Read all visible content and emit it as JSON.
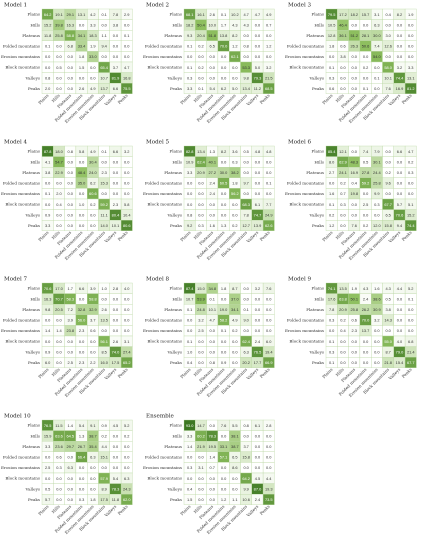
{
  "figure": {
    "class_labels": [
      "Plains",
      "Hills",
      "Plateaus",
      "Folded mountains",
      "Erosion mountains",
      "Block mountains",
      "Valleys",
      "Peaks"
    ]
  },
  "colors": {
    "low": "#ffffff",
    "mid": "#8fc060",
    "high": "#2f6b18",
    "border": "#b8d6a0"
  },
  "chart_data": [
    {
      "type": "heatmap",
      "title": "Model 1",
      "rows": [
        "Plains",
        "Hills",
        "Plateaus",
        "Folded mountains",
        "Erosion mountains",
        "Block mountains",
        "Valleys",
        "Peaks"
      ],
      "columns": [
        "Plains",
        "Hills",
        "Plateaus",
        "Folded mountains",
        "Erosion mountains",
        "Block mountains",
        "Valleys",
        "Peaks"
      ],
      "values": [
        [
          64.2,
          19.1,
          29.1,
          13.1,
          4.2,
          0.1,
          7.8,
          2.9
        ],
        [
          15.2,
          39.8,
          16.3,
          0.0,
          3.3,
          0.0,
          3.8,
          0.0
        ],
        [
          11.8,
          25.8,
          58.8,
          34.1,
          18.3,
          1.1,
          0.0,
          0.1
        ],
        [
          0.1,
          0.0,
          6.8,
          33.4,
          1.9,
          9.4,
          0.0,
          0.0
        ],
        [
          0.0,
          0.0,
          0.0,
          1.8,
          33.0,
          0.0,
          0.0,
          0.0
        ],
        [
          0.0,
          0.5,
          0.0,
          1.5,
          0.0,
          65.4,
          3.7,
          4.7
        ],
        [
          0.8,
          0.0,
          0.0,
          0.0,
          0.0,
          10.7,
          81.9,
          16.8
        ],
        [
          2.0,
          0.0,
          0.0,
          2.6,
          4.9,
          13.7,
          6.6,
          75.5
        ]
      ]
    },
    {
      "type": "heatmap",
      "title": "Model 2",
      "rows": [
        "Plains",
        "Hills",
        "Plateaus",
        "Folded mountains",
        "Erosion mountains",
        "Block mountains",
        "Valleys",
        "Peaks"
      ],
      "columns": [
        "Plains",
        "Hills",
        "Plateaus",
        "Folded mountains",
        "Erosion mountains",
        "Block mountains",
        "Valleys",
        "Peaks"
      ],
      "values": [
        [
          68.1,
          16.1,
          2.6,
          0.1,
          10.2,
          4.7,
          4.7,
          4.9
        ],
        [
          18.2,
          50.4,
          10.0,
          1.7,
          4.3,
          4.3,
          0.0,
          0.7
        ],
        [
          9.3,
          20.4,
          51.8,
          13.8,
          8.2,
          0.0,
          0.0,
          0.0
        ],
        [
          0.1,
          0.2,
          6.5,
          70.0,
          1.2,
          0.8,
          0.0,
          1.2
        ],
        [
          0.0,
          0.0,
          0.0,
          0.0,
          62.1,
          0.0,
          0.0,
          0.0
        ],
        [
          0.1,
          0.2,
          0.0,
          0.0,
          0.0,
          53.3,
          5.0,
          3.2
        ],
        [
          0.3,
          0.0,
          0.0,
          0.0,
          0.0,
          9.8,
          79.3,
          21.5
        ],
        [
          3.3,
          0.1,
          5.4,
          6.2,
          5.0,
          13.4,
          11.2,
          68.5
        ]
      ]
    },
    {
      "type": "heatmap",
      "title": "Model 3",
      "rows": [
        "Plains",
        "Hills",
        "Plateaus",
        "Folded mountains",
        "Erosion mountains",
        "Block mountains",
        "Valleys",
        "Peaks"
      ],
      "columns": [
        "Plains",
        "Hills",
        "Plateaus",
        "Folded mountains",
        "Erosion mountains",
        "Block mountains",
        "Valleys",
        "Peaks"
      ],
      "values": [
        [
          79.5,
          17.2,
          18.2,
          15.7,
          3.1,
          0.4,
          8.2,
          1.9
        ],
        [
          10.5,
          46.4,
          0.0,
          0.0,
          6.3,
          0.0,
          0.0,
          0.0
        ],
        [
          12.8,
          36.1,
          51.2,
          28.1,
          30.0,
          3.0,
          0.0,
          0.0
        ],
        [
          1.8,
          0.6,
          26.3,
          50.6,
          7.4,
          12.6,
          0.0,
          0.0
        ],
        [
          0.0,
          3.8,
          0.0,
          0.0,
          54.0,
          0.0,
          0.0,
          0.0
        ],
        [
          0.1,
          0.0,
          0.0,
          0.2,
          0.0,
          58.0,
          3.2,
          3.3
        ],
        [
          0.3,
          0.0,
          0.0,
          0.0,
          0.1,
          10.1,
          74.4,
          13.1
        ],
        [
          0.6,
          0.0,
          0.0,
          0.1,
          0.0,
          7.6,
          16.9,
          81.2
        ]
      ]
    },
    {
      "type": "heatmap",
      "title": "Model 4",
      "rows": [
        "Plains",
        "Hills",
        "Plateaus",
        "Folded mountains",
        "Erosion mountains",
        "Block mountains",
        "Valleys",
        "Peaks"
      ],
      "columns": [
        "Plains",
        "Hills",
        "Plateaus",
        "Folded mountains",
        "Erosion mountains",
        "Block mountains",
        "Valleys",
        "Peaks"
      ],
      "values": [
        [
          87.8,
          18.0,
          0.8,
          5.8,
          4.9,
          0.1,
          6.6,
          3.2
        ],
        [
          4.1,
          54.7,
          0.0,
          0.0,
          30.4,
          0.0,
          0.0,
          0.0
        ],
        [
          3.8,
          22.9,
          0.0,
          48.4,
          24.0,
          2.3,
          0.0,
          0.0
        ],
        [
          0.0,
          0.0,
          0.0,
          35.0,
          6.2,
          15.3,
          0.0,
          0.0
        ],
        [
          0.1,
          2.0,
          0.0,
          0.0,
          60.6,
          0.0,
          0.0,
          0.0
        ],
        [
          0.0,
          0.4,
          0.0,
          1.0,
          0.2,
          59.2,
          2.3,
          5.8
        ],
        [
          0.9,
          0.0,
          0.0,
          0.0,
          0.0,
          11.1,
          80.4,
          10.4
        ],
        [
          3.3,
          0.0,
          0.0,
          0.0,
          0.0,
          14.0,
          10.1,
          80.6
        ]
      ]
    },
    {
      "type": "heatmap",
      "title": "Model 5",
      "rows": [
        "Plains",
        "Hills",
        "Plateaus",
        "Folded mountains",
        "Erosion mountains",
        "Block mountains",
        "Valleys",
        "Peaks"
      ],
      "columns": [
        "Plains",
        "Hills",
        "Plateaus",
        "Folded mountains",
        "Erosion mountains",
        "Block mountains",
        "Valleys",
        "Peaks"
      ],
      "values": [
        [
          82.8,
          13.4,
          1.3,
          8.2,
          3.6,
          0.5,
          4.8,
          4.8
        ],
        [
          10.9,
          62.4,
          40.1,
          0.0,
          0.3,
          0.0,
          0.0,
          0.0
        ],
        [
          3.3,
          20.9,
          27.2,
          30.0,
          38.2,
          0.0,
          0.0,
          0.0
        ],
        [
          0.0,
          0.0,
          2.4,
          60.5,
          1.8,
          9.7,
          0.0,
          0.1
        ],
        [
          0.0,
          0.0,
          2.4,
          0.0,
          56.2,
          0.0,
          0.0,
          0.0
        ],
        [
          0.0,
          0.0,
          0.0,
          0.0,
          0.0,
          68.3,
          6.1,
          7.7
        ],
        [
          0.8,
          0.0,
          0.0,
          0.0,
          0.0,
          7.8,
          74.7,
          24.9
        ],
        [
          9.2,
          0.3,
          1.6,
          1.3,
          0.2,
          12.7,
          13.9,
          62.6
        ]
      ]
    },
    {
      "type": "heatmap",
      "title": "Model 6",
      "rows": [
        "Plains",
        "Hills",
        "Plateaus",
        "Folded mountains",
        "Erosion mountains",
        "Block mountains",
        "Valleys",
        "Peaks"
      ],
      "columns": [
        "Plains",
        "Hills",
        "Plateaus",
        "Folded mountains",
        "Erosion mountains",
        "Block mountains",
        "Valleys",
        "Peaks"
      ],
      "values": [
        [
          85.4,
          12.1,
          0.0,
          7.4,
          7.9,
          0.0,
          6.6,
          4.7
        ],
        [
          8.0,
          62.9,
          48.3,
          0.5,
          30.1,
          0.0,
          0.0,
          0.2
        ],
        [
          2.7,
          24.1,
          16.9,
          27.8,
          24.4,
          0.2,
          0.0,
          0.3
        ],
        [
          0.0,
          0.2,
          0.4,
          59.2,
          25.8,
          9.6,
          0.0,
          0.0
        ],
        [
          1.6,
          0.7,
          19.8,
          0.0,
          9.9,
          0.0,
          0.0,
          0.0
        ],
        [
          0.1,
          0.3,
          0.0,
          2.5,
          0.3,
          67.7,
          5.7,
          5.1
        ],
        [
          0.2,
          0.0,
          0.0,
          0.0,
          0.0,
          6.5,
          70.6,
          15.2
        ],
        [
          1.2,
          0.0,
          7.6,
          0.2,
          12.0,
          15.8,
          9.4,
          74.4
        ]
      ]
    },
    {
      "type": "heatmap",
      "title": "Model 7",
      "rows": [
        "Plains",
        "Hills",
        "Plateaus",
        "Folded mountains",
        "Erosion mountains",
        "Block mountains",
        "Valleys",
        "Peaks"
      ],
      "columns": [
        "Plains",
        "Hills",
        "Plateaus",
        "Folded mountains",
        "Erosion mountains",
        "Block mountains",
        "Valleys",
        "Peaks"
      ],
      "values": [
        [
          70.6,
          17.0,
          1.7,
          6.6,
          3.9,
          1.0,
          2.8,
          4.0
        ],
        [
          16.3,
          70.7,
          58.3,
          0.0,
          58.8,
          0.0,
          0.0,
          0.0
        ],
        [
          9.8,
          20.5,
          7.2,
          32.8,
          32.9,
          2.6,
          0.0,
          0.0
        ],
        [
          0.0,
          0.0,
          3.9,
          56.0,
          3.7,
          13.5,
          0.0,
          0.0
        ],
        [
          1.4,
          1.4,
          23.8,
          2.3,
          0.6,
          0.0,
          0.0,
          0.0
        ],
        [
          0.0,
          0.0,
          0.0,
          0.0,
          0.0,
          56.1,
          2.6,
          3.1
        ],
        [
          0.9,
          0.0,
          0.0,
          0.0,
          0.0,
          8.5,
          74.0,
          27.4
        ],
        [
          6.0,
          0.0,
          2.5,
          2.3,
          2.2,
          16.0,
          17.5,
          65.2
        ]
      ]
    },
    {
      "type": "heatmap",
      "title": "Model 8",
      "rows": [
        "Plains",
        "Hills",
        "Plateaus",
        "Folded mountains",
        "Erosion mountains",
        "Block mountains",
        "Valleys",
        "Peaks"
      ],
      "columns": [
        "Plains",
        "Hills",
        "Plateaus",
        "Folded mountains",
        "Erosion mountains",
        "Block mountains",
        "Valleys",
        "Peaks"
      ],
      "values": [
        [
          87.4,
          15.0,
          34.8,
          1.8,
          8.7,
          0.0,
          3.2,
          7.6
        ],
        [
          10.7,
          53.9,
          0.1,
          0.0,
          37.0,
          0.0,
          0.0,
          0.0
        ],
        [
          0.1,
          24.8,
          10.1,
          19.0,
          34.1,
          0.1,
          0.0,
          0.0
        ],
        [
          0.0,
          3.2,
          4.7,
          58.2,
          4.9,
          9.0,
          0.0,
          0.0
        ],
        [
          0.0,
          2.5,
          0.0,
          0.1,
          0.2,
          0.0,
          0.0,
          0.0
        ],
        [
          0.1,
          0.0,
          0.0,
          0.0,
          0.0,
          62.4,
          2.4,
          6.0
        ],
        [
          1.0,
          0.0,
          0.0,
          0.0,
          0.0,
          6.3,
          76.5,
          19.4
        ],
        [
          0.4,
          0.0,
          0.8,
          0.9,
          0.0,
          20.2,
          17.7,
          66.9
        ]
      ]
    },
    {
      "type": "heatmap",
      "title": "Model 9",
      "rows": [
        "Plains",
        "Hills",
        "Plateaus",
        "Folded mountains",
        "Erosion mountains",
        "Block mountains",
        "Valleys",
        "Peaks"
      ],
      "columns": [
        "Plains",
        "Hills",
        "Plateaus",
        "Folded mountains",
        "Erosion mountains",
        "Block mountains",
        "Valleys",
        "Peaks"
      ],
      "values": [
        [
          74.1,
          13.5,
          1.9,
          4.3,
          1.6,
          4.3,
          4.4,
          5.2
        ],
        [
          17.6,
          63.8,
          50.1,
          2.4,
          38.6,
          0.5,
          0.0,
          0.1
        ],
        [
          7.8,
          20.9,
          25.8,
          26.2,
          30.9,
          3.8,
          0.0,
          0.0
        ],
        [
          0.3,
          0.2,
          0.6,
          70.0,
          3.2,
          14.3,
          0.0,
          0.0
        ],
        [
          0.0,
          0.4,
          2.3,
          13.7,
          0.0,
          0.0,
          0.0,
          0.0
        ],
        [
          0.1,
          0.0,
          0.0,
          0.0,
          0.0,
          55.0,
          4.0,
          6.8
        ],
        [
          0.3,
          0.0,
          0.0,
          0.0,
          0.0,
          8.7,
          79.0,
          21.4
        ],
        [
          0.1,
          0.0,
          0.0,
          0.0,
          0.0,
          21.8,
          15.4,
          67.7
        ]
      ]
    },
    {
      "type": "heatmap",
      "title": "Model 10",
      "rows": [
        "Plains",
        "Hills",
        "Plateaus",
        "Folded mountains",
        "Erosion mountains",
        "Block mountains",
        "Valleys",
        "Peaks"
      ],
      "columns": [
        "Plains",
        "Hills",
        "Plateaus",
        "Folded mountains",
        "Erosion mountains",
        "Block mountains",
        "Valleys",
        "Peaks"
      ],
      "values": [
        [
          76.5,
          11.5,
          1.4,
          5.4,
          9.1,
          0.9,
          4.5,
          5.2
        ],
        [
          15.9,
          63.6,
          64.5,
          1.3,
          38.7,
          0.2,
          0.0,
          0.2
        ],
        [
          3.3,
          23.6,
          29.7,
          26.7,
          35.4,
          4.4,
          0.0,
          0.0
        ],
        [
          0.0,
          0.6,
          0.0,
          66.4,
          6.3,
          15.1,
          0.0,
          0.0
        ],
        [
          2.5,
          0.3,
          6.3,
          0.0,
          0.0,
          0.0,
          0.0,
          0.0
        ],
        [
          0.0,
          0.0,
          0.0,
          0.0,
          0.0,
          57.9,
          5.4,
          6.3
        ],
        [
          0.5,
          0.0,
          0.0,
          0.0,
          0.0,
          8.9,
          78.3,
          24.3
        ],
        [
          5.7,
          0.0,
          0.0,
          0.3,
          1.8,
          17.5,
          11.8,
          62.0
        ]
      ]
    },
    {
      "type": "heatmap",
      "title": "Ensemble",
      "rows": [
        "Plains",
        "Hills",
        "Plateaus",
        "Folded mountains",
        "Erosion mountains",
        "Block mountains",
        "Valleys",
        "Peaks"
      ],
      "columns": [
        "Plains",
        "Hills",
        "Plateaus",
        "Folded mountains",
        "Erosion mountains",
        "Block mountains",
        "Valleys",
        "Peaks"
      ],
      "values": [
        [
          93.0,
          14.7,
          0.0,
          7.6,
          5.5,
          0.8,
          6.1,
          2.8
        ],
        [
          3.3,
          60.2,
          78.3,
          0.0,
          38.1,
          0.0,
          0.0,
          0.0
        ],
        [
          1.4,
          21.9,
          19.5,
          33.1,
          38.7,
          3.7,
          0.0,
          0.0
        ],
        [
          0.0,
          0.0,
          1.4,
          57.1,
          6.5,
          15.8,
          0.0,
          0.0
        ],
        [
          0.3,
          3.1,
          0.7,
          0.0,
          8.6,
          0.0,
          0.0,
          0.0
        ],
        [
          0.0,
          0.0,
          0.0,
          0.0,
          0.0,
          64.2,
          4.5,
          4.4
        ],
        [
          0.4,
          0.0,
          0.0,
          0.0,
          0.0,
          9.9,
          87.0,
          19.3
        ],
        [
          1.5,
          0.0,
          0.0,
          1.2,
          1.1,
          10.6,
          2.4,
          73.5
        ]
      ]
    }
  ]
}
